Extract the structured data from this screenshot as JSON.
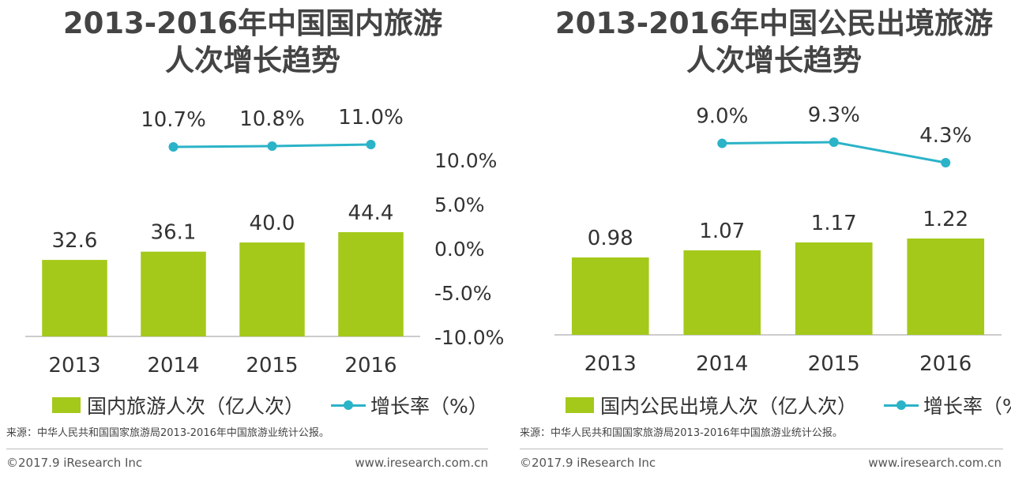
{
  "colors": {
    "bar": "#a4c91a",
    "line": "#2bb3c8"
  },
  "chart_data": [
    {
      "type": "bar",
      "title": "2013-2016年中国国内旅游人次增长趋势",
      "title_lines": [
        "2013-2016年中国国内旅游",
        "人次增长趋势"
      ],
      "categories": [
        "2013",
        "2014",
        "2015",
        "2016"
      ],
      "series": [
        {
          "name": "国内旅游人次（亿人次）",
          "type": "bar",
          "values": [
            32.6,
            36.1,
            40.0,
            44.4
          ],
          "labels": [
            "32.6",
            "36.1",
            "40.0",
            "44.4"
          ]
        },
        {
          "name": "增长率（%）",
          "type": "line",
          "axis": "right",
          "values": [
            null,
            10.7,
            10.8,
            11.0
          ],
          "labels": [
            "",
            "10.7%",
            "10.8%",
            "11.0%"
          ]
        }
      ],
      "y2_ticks": [
        "10.0%",
        "5.0%",
        "0.0%",
        "-5.0%",
        "-10.0%"
      ],
      "y2lim": [
        -10,
        10
      ],
      "legend_bar": "国内旅游人次（亿人次）",
      "legend_line": "增长率（%）",
      "source": "来源：中华人民共和国国家旅游局2013-2016年中国旅游业统计公报。",
      "copyright": "©2017.9 iResearch Inc",
      "website": "www.iresearch.com.cn"
    },
    {
      "type": "bar",
      "title": "2013-2016年中国公民出境旅游人次增长趋势",
      "title_lines": [
        "2013-2016年中国公民出境旅游",
        "人次增长趋势"
      ],
      "categories": [
        "2013",
        "2014",
        "2015",
        "2016"
      ],
      "series": [
        {
          "name": "国内公民出境人次（亿人次）",
          "type": "bar",
          "values": [
            0.98,
            1.07,
            1.17,
            1.22
          ],
          "labels": [
            "0.98",
            "1.07",
            "1.17",
            "1.22"
          ]
        },
        {
          "name": "增长率（%）",
          "type": "line",
          "values": [
            null,
            9.0,
            9.3,
            4.3
          ],
          "labels": [
            "",
            "9.0%",
            "9.3%",
            "4.3%"
          ]
        }
      ],
      "legend_bar": "国内公民出境人次（亿人次）",
      "legend_line": "增长率（%）",
      "source": "来源：中华人民共和国国家旅游局2013-2016年中国旅游业统计公报。",
      "copyright": "©2017.9 iResearch Inc",
      "website": "www.iresearch.com.cn"
    }
  ]
}
